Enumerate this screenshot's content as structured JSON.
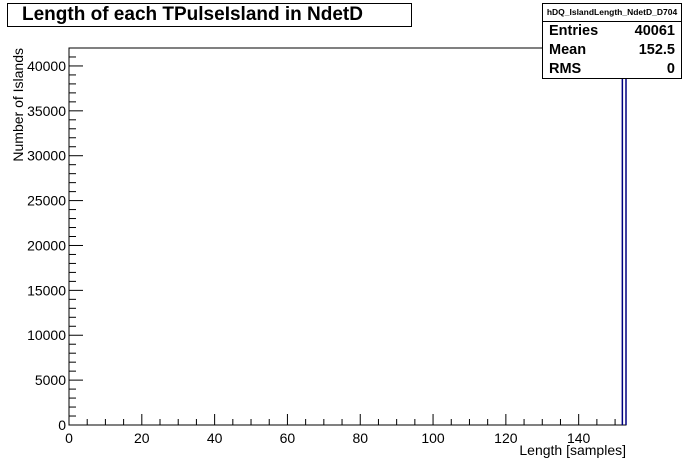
{
  "chart_data": {
    "type": "bar",
    "title": "Length of each TPulseIsland in NdetD",
    "xlabel": "Length [samples]",
    "ylabel": "Number of Islands",
    "xlim": [
      0,
      153
    ],
    "ylim": [
      0,
      42000
    ],
    "x_ticks": [
      0,
      20,
      40,
      60,
      80,
      100,
      120,
      140
    ],
    "y_ticks": [
      0,
      5000,
      10000,
      15000,
      20000,
      25000,
      30000,
      35000,
      40000
    ],
    "bins": [
      {
        "x_low": 152,
        "x_high": 153,
        "value": 40061
      }
    ],
    "grid": false,
    "bar_color": "#000080"
  },
  "stats": {
    "name": "hDQ_IslandLength_NdetD_D704",
    "rows": [
      {
        "label": "Entries",
        "value": "40061"
      },
      {
        "label": "Mean",
        "value": "152.5"
      },
      {
        "label": "RMS",
        "value": "0"
      }
    ]
  }
}
